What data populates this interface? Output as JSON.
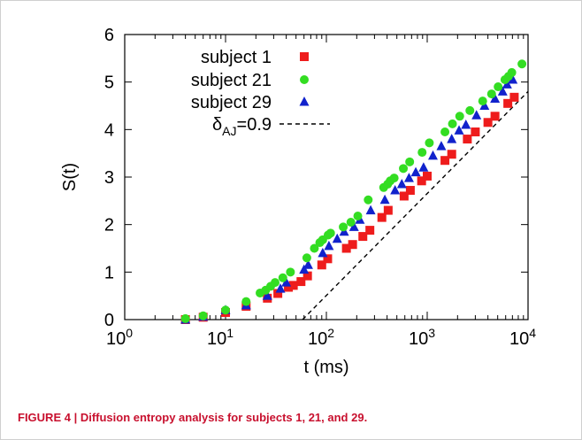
{
  "figure": {
    "caption": "FIGURE 4 | Diffusion entropy analysis for subjects 1, 21, and 29."
  },
  "chart_data": {
    "type": "scatter",
    "xlabel": "t (ms)",
    "ylabel": "S(t)",
    "xscale": "log",
    "xlim": [
      1,
      10000
    ],
    "ylim": [
      0,
      6
    ],
    "x_ticks": [
      {
        "value": 1,
        "base": "10",
        "exp": "0"
      },
      {
        "value": 10,
        "base": "10",
        "exp": "1"
      },
      {
        "value": 100,
        "base": "10",
        "exp": "2"
      },
      {
        "value": 1000,
        "base": "10",
        "exp": "3"
      },
      {
        "value": 10000,
        "base": "10",
        "exp": "4"
      }
    ],
    "y_ticks": [
      0,
      1,
      2,
      3,
      4,
      5,
      6
    ],
    "legend_position": "top-right",
    "series": [
      {
        "name": "subject 1",
        "marker": "square",
        "color": "#ee1c1c",
        "points": [
          [
            4,
            0.0
          ],
          [
            6,
            0.05
          ],
          [
            10,
            0.15
          ],
          [
            16,
            0.28
          ],
          [
            26,
            0.45
          ],
          [
            33,
            0.55
          ],
          [
            42,
            0.68
          ],
          [
            47,
            0.72
          ],
          [
            56,
            0.8
          ],
          [
            65,
            0.92
          ],
          [
            90,
            1.15
          ],
          [
            103,
            1.28
          ],
          [
            158,
            1.5
          ],
          [
            182,
            1.58
          ],
          [
            230,
            1.75
          ],
          [
            270,
            1.88
          ],
          [
            355,
            2.15
          ],
          [
            410,
            2.3
          ],
          [
            590,
            2.6
          ],
          [
            680,
            2.72
          ],
          [
            880,
            2.92
          ],
          [
            1000,
            3.02
          ],
          [
            1500,
            3.35
          ],
          [
            1750,
            3.48
          ],
          [
            2500,
            3.8
          ],
          [
            3000,
            3.95
          ],
          [
            4000,
            4.15
          ],
          [
            4700,
            4.28
          ],
          [
            6300,
            4.55
          ],
          [
            7300,
            4.68
          ]
        ]
      },
      {
        "name": "subject 21",
        "marker": "circle",
        "color": "#33dd22",
        "points": [
          [
            4,
            0.02
          ],
          [
            6,
            0.08
          ],
          [
            10,
            0.2
          ],
          [
            16,
            0.38
          ],
          [
            22,
            0.56
          ],
          [
            25,
            0.62
          ],
          [
            28,
            0.7
          ],
          [
            31,
            0.78
          ],
          [
            37,
            0.88
          ],
          [
            44,
            1.0
          ],
          [
            64,
            1.3
          ],
          [
            76,
            1.5
          ],
          [
            86,
            1.62
          ],
          [
            92,
            1.68
          ],
          [
            104,
            1.78
          ],
          [
            110,
            1.82
          ],
          [
            147,
            1.95
          ],
          [
            175,
            2.05
          ],
          [
            205,
            2.18
          ],
          [
            260,
            2.52
          ],
          [
            370,
            2.78
          ],
          [
            405,
            2.85
          ],
          [
            430,
            2.92
          ],
          [
            470,
            2.98
          ],
          [
            580,
            3.18
          ],
          [
            670,
            3.32
          ],
          [
            890,
            3.52
          ],
          [
            1050,
            3.72
          ],
          [
            1500,
            3.95
          ],
          [
            1780,
            4.12
          ],
          [
            2100,
            4.28
          ],
          [
            2650,
            4.4
          ],
          [
            3550,
            4.6
          ],
          [
            4350,
            4.75
          ],
          [
            5050,
            4.9
          ],
          [
            5900,
            5.05
          ],
          [
            6400,
            5.12
          ],
          [
            6900,
            5.2
          ],
          [
            8700,
            5.38
          ]
        ]
      },
      {
        "name": "subject 29",
        "marker": "triangle",
        "color": "#1122cc",
        "points": [
          [
            4,
            0.0
          ],
          [
            6,
            0.06
          ],
          [
            10,
            0.2
          ],
          [
            16,
            0.3
          ],
          [
            26,
            0.5
          ],
          [
            35,
            0.65
          ],
          [
            40,
            0.78
          ],
          [
            60,
            1.05
          ],
          [
            66,
            1.15
          ],
          [
            92,
            1.4
          ],
          [
            106,
            1.55
          ],
          [
            128,
            1.7
          ],
          [
            150,
            1.85
          ],
          [
            188,
            1.95
          ],
          [
            215,
            2.1
          ],
          [
            275,
            2.3
          ],
          [
            380,
            2.52
          ],
          [
            480,
            2.72
          ],
          [
            560,
            2.85
          ],
          [
            660,
            2.98
          ],
          [
            770,
            3.1
          ],
          [
            920,
            3.2
          ],
          [
            1140,
            3.45
          ],
          [
            1380,
            3.65
          ],
          [
            1750,
            3.8
          ],
          [
            2070,
            3.98
          ],
          [
            2420,
            4.1
          ],
          [
            3080,
            4.3
          ],
          [
            3700,
            4.5
          ],
          [
            4700,
            4.65
          ],
          [
            5600,
            4.8
          ],
          [
            6200,
            4.95
          ],
          [
            7050,
            5.05
          ]
        ]
      },
      {
        "name": "δAJ=0.9",
        "label_base": "δ",
        "label_sub": "AJ",
        "label_rest": "=0.9",
        "marker": "dashed-line",
        "color": "#000000",
        "points": [
          [
            58,
            0.0
          ],
          [
            10000,
            4.8
          ]
        ]
      }
    ]
  }
}
